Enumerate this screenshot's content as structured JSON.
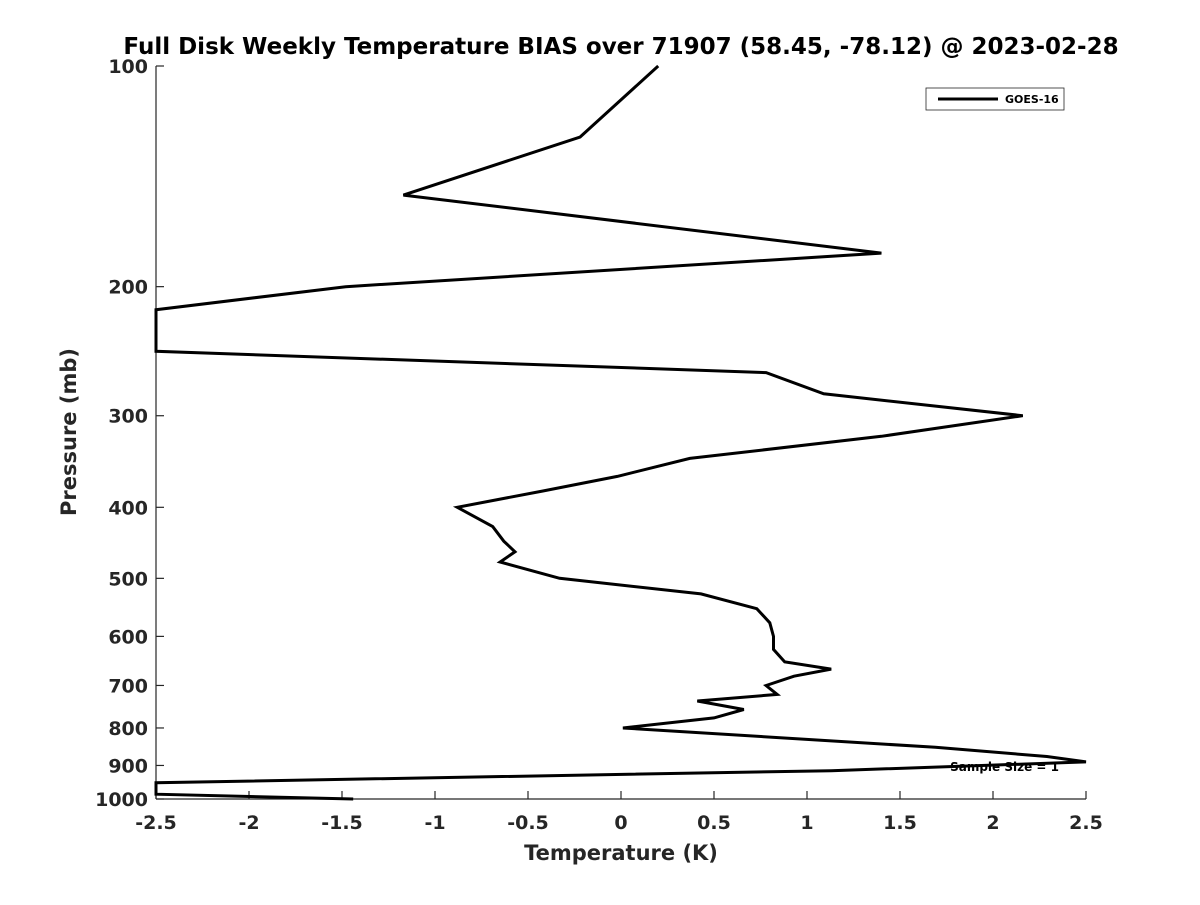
{
  "chart_data": {
    "type": "line",
    "title": "Full Disk Weekly Temperature BIAS over 71907 (58.45, -78.12) @ 2023-02-28",
    "xlabel": "Temperature (K)",
    "ylabel": "Pressure (mb)",
    "xlim": [
      -2.5,
      2.5
    ],
    "ylim": [
      1000,
      100
    ],
    "y_scale": "log",
    "y_reversed": true,
    "grid": false,
    "x_ticks": [
      -2.5,
      -2,
      -1.5,
      -1,
      -0.5,
      0,
      0.5,
      1,
      1.5,
      2,
      2.5
    ],
    "x_tick_labels": [
      "-2.5",
      "-2",
      "-1.5",
      "-1",
      "-0.5",
      "0",
      "0.5",
      "1",
      "1.5",
      "2",
      "2.5"
    ],
    "y_ticks": [
      100,
      200,
      300,
      400,
      500,
      600,
      700,
      800,
      900,
      1000
    ],
    "y_tick_labels": [
      "100",
      "200",
      "300",
      "400",
      "500",
      "600",
      "700",
      "800",
      "900",
      "1000"
    ],
    "legend": {
      "placement": "top-right",
      "entries": [
        "GOES-16"
      ]
    },
    "series": [
      {
        "name": "GOES-16",
        "color": "#000000",
        "points": [
          [
            0.2,
            100
          ],
          [
            -0.22,
            125
          ],
          [
            -1.17,
            150
          ],
          [
            1.4,
            180
          ],
          [
            -1.48,
            200
          ],
          [
            -2.5,
            215
          ],
          [
            -2.5,
            245
          ],
          [
            0.78,
            262
          ],
          [
            1.09,
            280
          ],
          [
            2.16,
            300
          ],
          [
            1.4,
            320
          ],
          [
            0.37,
            343
          ],
          [
            -0.02,
            363
          ],
          [
            -0.42,
            380
          ],
          [
            -0.88,
            400
          ],
          [
            -0.69,
            425
          ],
          [
            -0.63,
            445
          ],
          [
            -0.57,
            460
          ],
          [
            -0.65,
            475
          ],
          [
            -0.33,
            500
          ],
          [
            0.43,
            525
          ],
          [
            0.73,
            550
          ],
          [
            0.8,
            575
          ],
          [
            0.82,
            600
          ],
          [
            0.82,
            625
          ],
          [
            0.88,
            650
          ],
          [
            1.13,
            665
          ],
          [
            0.93,
            680
          ],
          [
            0.78,
            700
          ],
          [
            0.84,
            720
          ],
          [
            0.41,
            735
          ],
          [
            0.66,
            755
          ],
          [
            0.5,
            775
          ],
          [
            0.01,
            800
          ],
          [
            1.69,
            850
          ],
          [
            2.29,
            875
          ],
          [
            2.5,
            890
          ],
          [
            1.13,
            915
          ],
          [
            -2.5,
            950
          ],
          [
            -2.5,
            985
          ],
          [
            -1.44,
            1000
          ]
        ]
      }
    ],
    "annotations": [
      "Sample Size = 1"
    ]
  }
}
